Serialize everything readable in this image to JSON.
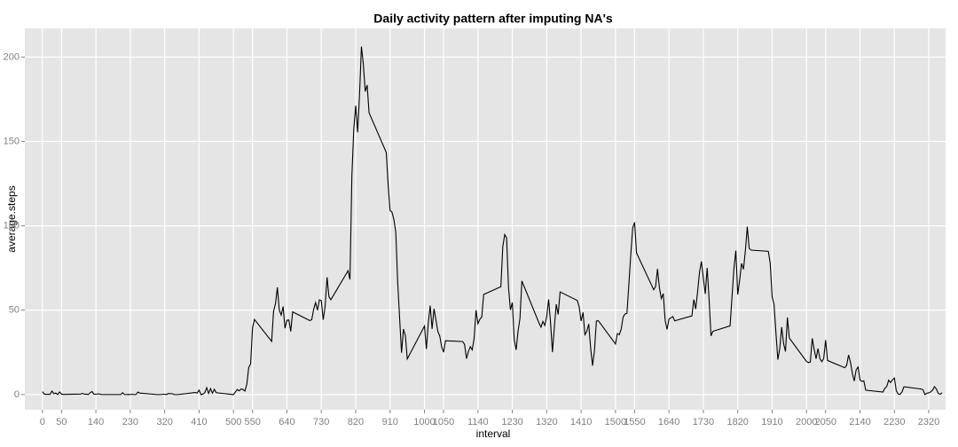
{
  "chart_data": {
    "type": "line",
    "title": "Daily activity pattern after imputing NA's",
    "xlabel": "interval",
    "ylabel": "average.steps",
    "color": "#000000",
    "grid": true,
    "x": [
      0,
      5,
      10,
      15,
      20,
      25,
      30,
      35,
      40,
      45,
      50,
      55,
      100,
      105,
      110,
      115,
      120,
      125,
      130,
      135,
      140,
      145,
      150,
      155,
      200,
      205,
      210,
      215,
      220,
      225,
      230,
      235,
      240,
      245,
      250,
      255,
      300,
      305,
      310,
      315,
      320,
      325,
      330,
      335,
      340,
      345,
      350,
      355,
      400,
      405,
      410,
      415,
      420,
      425,
      430,
      435,
      440,
      445,
      450,
      455,
      500,
      505,
      510,
      515,
      520,
      525,
      530,
      535,
      540,
      545,
      550,
      555,
      600,
      605,
      610,
      615,
      620,
      625,
      630,
      635,
      640,
      645,
      650,
      655,
      700,
      705,
      710,
      715,
      720,
      725,
      730,
      735,
      740,
      745,
      750,
      755,
      800,
      805,
      810,
      815,
      820,
      825,
      830,
      835,
      840,
      845,
      850,
      855,
      900,
      905,
      910,
      915,
      920,
      925,
      930,
      935,
      940,
      945,
      950,
      955,
      1000,
      1005,
      1010,
      1015,
      1020,
      1025,
      1030,
      1035,
      1040,
      1045,
      1050,
      1055,
      1100,
      1105,
      1110,
      1115,
      1120,
      1125,
      1130,
      1135,
      1140,
      1145,
      1150,
      1155,
      1200,
      1205,
      1210,
      1215,
      1220,
      1225,
      1230,
      1235,
      1240,
      1245,
      1250,
      1255,
      1300,
      1305,
      1310,
      1315,
      1320,
      1325,
      1330,
      1335,
      1340,
      1345,
      1350,
      1355,
      1400,
      1405,
      1410,
      1415,
      1420,
      1425,
      1430,
      1435,
      1440,
      1445,
      1450,
      1455,
      1500,
      1505,
      1510,
      1515,
      1520,
      1525,
      1530,
      1535,
      1540,
      1545,
      1550,
      1555,
      1600,
      1605,
      1610,
      1615,
      1620,
      1625,
      1630,
      1635,
      1640,
      1645,
      1650,
      1655,
      1700,
      1705,
      1710,
      1715,
      1720,
      1725,
      1730,
      1735,
      1740,
      1745,
      1750,
      1755,
      1800,
      1805,
      1810,
      1815,
      1820,
      1825,
      1830,
      1835,
      1840,
      1845,
      1850,
      1855,
      1900,
      1905,
      1910,
      1915,
      1920,
      1925,
      1930,
      1935,
      1940,
      1945,
      1950,
      1955,
      2000,
      2005,
      2010,
      2015,
      2020,
      2025,
      2030,
      2035,
      2040,
      2045,
      2050,
      2055,
      2100,
      2105,
      2110,
      2115,
      2120,
      2125,
      2130,
      2135,
      2140,
      2145,
      2150,
      2155,
      2200,
      2205,
      2210,
      2215,
      2220,
      2225,
      2230,
      2235,
      2240,
      2245,
      2250,
      2255,
      2300,
      2305,
      2310,
      2315,
      2320,
      2325,
      2330,
      2335,
      2340,
      2345,
      2350,
      2355
    ],
    "values": [
      1.7,
      0.3,
      0.1,
      0.2,
      0.1,
      2.1,
      0.5,
      0.9,
      0,
      1.5,
      0.3,
      0.1,
      0.3,
      0.7,
      0.2,
      0.3,
      0,
      1.1,
      1.8,
      0.2,
      0.2,
      0.4,
      0.3,
      0,
      0,
      0,
      1.1,
      0,
      0,
      0.1,
      0,
      0.2,
      0,
      0,
      1.5,
      0.9,
      0,
      0,
      0,
      0.2,
      0.2,
      0,
      0.7,
      0.5,
      0.5,
      0,
      0,
      0,
      1.2,
      0.9,
      2.6,
      0,
      0.3,
      1.1,
      4.1,
      0.7,
      3.5,
      0.8,
      3.1,
      1.1,
      0,
      1.5,
      3,
      2.2,
      3.3,
      3,
      2.1,
      6.1,
      16,
      18.3,
      39.5,
      44.5,
      31.5,
      49.3,
      53.8,
      63.5,
      50,
      47.1,
      52.2,
      39.3,
      44,
      44.2,
      37.4,
      49,
      43.8,
      44.4,
      50.5,
      54.5,
      50,
      56.1,
      55.7,
      44.3,
      52.3,
      69.5,
      58,
      56.2,
      73.4,
      68.2,
      129.4,
      157.5,
      171.2,
      155.4,
      177.3,
      206.2,
      195.9,
      179.6,
      183.4,
      167,
      143.5,
      124,
      109.1,
      108.1,
      103.7,
      96,
      66.2,
      45.2,
      24.8,
      38.8,
      35,
      21.1,
      40.6,
      27,
      42.4,
      52.7,
      38.9,
      50.8,
      44.3,
      37.4,
      34.7,
      28.3,
      25.1,
      31.9,
      31.4,
      29.7,
      21.3,
      25.5,
      28.4,
      26.5,
      33.4,
      50,
      42,
      44.6,
      46,
      59.3,
      63.9,
      87.6,
      94.8,
      92.8,
      63.4,
      50.2,
      54.5,
      32.4,
      26.5,
      37.7,
      45.1,
      67.3,
      42.3,
      39.9,
      43.3,
      41,
      46.2,
      56.4,
      42.8,
      25.1,
      40,
      53.5,
      47.4,
      60.8,
      55.8,
      52,
      43.6,
      48.7,
      35.5,
      37.5,
      41.8,
      27.5,
      17.1,
      26.1,
      43.6,
      43.8,
      30,
      36.1,
      35.5,
      38.8,
      46,
      47.8,
      48.1,
      65.3,
      82.9,
      98.7,
      102.1,
      84,
      62.1,
      64.1,
      74.5,
      63.2,
      56.9,
      59.8,
      43.9,
      38.6,
      44.7,
      45.5,
      46.2,
      43.7,
      46.6,
      56.3,
      50.7,
      61.2,
      72.7,
      78.9,
      68.9,
      59.7,
      75.1,
      56.5,
      34.8,
      37.5,
      40.7,
      58,
      74.7,
      85.3,
      59.3,
      67.8,
      77.7,
      74.2,
      85.3,
      99.5,
      86.6,
      85.6,
      84.9,
      77.8,
      58,
      53.4,
      36.3,
      20.7,
      27.4,
      40,
      30.2,
      25.5,
      45.7,
      33.5,
      19.6,
      19,
      19.3,
      33.3,
      26.8,
      21.2,
      27.3,
      21.3,
      19.5,
      21.3,
      32.3,
      20.2,
      15.9,
      17.2,
      23.5,
      19.2,
      12.5,
      8,
      14.7,
      16.3,
      8.7,
      7.8,
      8.1,
      2.6,
      1.5,
      3.7,
      4.8,
      8.5,
      7.1,
      8.7,
      9.8,
      2.2,
      0.3,
      0.1,
      1.6,
      4.6,
      3.3,
      2.8,
      0,
      0.8,
      1,
      1.6,
      2.6,
      4.7,
      3.3,
      0.6,
      0.2,
      1.1
    ],
    "xlim": [
      -46,
      2364
    ],
    "xticks": [
      0,
      50,
      140,
      230,
      320,
      410,
      500,
      550,
      640,
      730,
      820,
      910,
      1000,
      1050,
      1140,
      1230,
      1320,
      1410,
      1500,
      1550,
      1640,
      1730,
      1820,
      1910,
      2000,
      2050,
      2140,
      2230,
      2320
    ],
    "ylim": [
      -9,
      217
    ],
    "yticks": [
      0,
      50,
      100,
      150,
      200
    ]
  }
}
